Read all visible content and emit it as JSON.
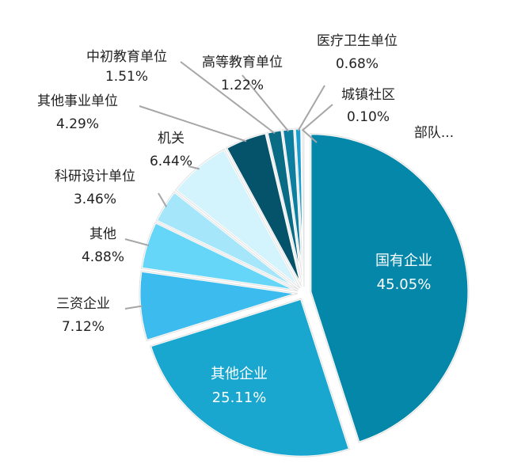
{
  "chart_data": {
    "type": "pie",
    "title": "",
    "slices": [
      {
        "label": "国有企业",
        "value": 45.05,
        "display": "45.05%",
        "color": "#0487a8",
        "pull": 1
      },
      {
        "label": "其他企业",
        "value": 25.11,
        "display": "25.11%",
        "color": "#19a6cf",
        "pull": 1
      },
      {
        "label": "三资企业",
        "value": 7.12,
        "display": "7.12%",
        "color": "#3cbbee",
        "pull": 1
      },
      {
        "label": "其他",
        "value": 4.88,
        "display": "4.88%",
        "color": "#66d6f8",
        "pull": 1
      },
      {
        "label": "科研设计单位",
        "value": 3.46,
        "display": "3.46%",
        "color": "#a5e6fb",
        "pull": 1
      },
      {
        "label": "机关",
        "value": 6.44,
        "display": "6.44%",
        "color": "#d3f3fd",
        "pull": 1
      },
      {
        "label": "其他事业单位",
        "value": 4.29,
        "display": "4.29%",
        "color": "#05536a",
        "pull": 1
      },
      {
        "label": "中初教育单位",
        "value": 1.51,
        "display": "1.51%",
        "color": "#0a6b85",
        "pull": 1
      },
      {
        "label": "高等教育单位",
        "value": 1.22,
        "display": "1.22%",
        "color": "#0c7fa0",
        "pull": 1
      },
      {
        "label": "医疗卫生单位",
        "value": 0.68,
        "display": "0.68%",
        "color": "#1a9ed0",
        "pull": 1
      },
      {
        "label": "城镇社区",
        "value": 0.1,
        "display": "0.10%",
        "color": "#38b4ea",
        "pull": 1
      },
      {
        "label": "部队...",
        "value": 0.14,
        "display": "",
        "color": "#5cc5ef",
        "pull": 1
      }
    ]
  }
}
